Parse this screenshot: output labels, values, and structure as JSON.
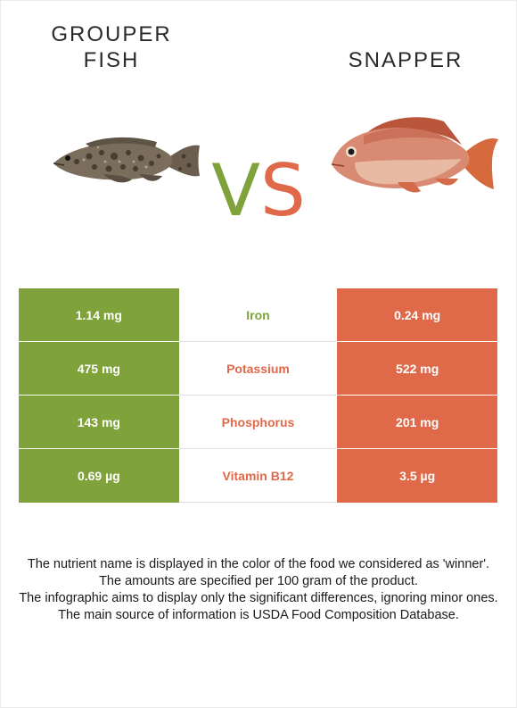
{
  "foods": {
    "left": {
      "name": "GROUPER FISH",
      "color": "#7fa23a"
    },
    "right": {
      "name": "SNAPPER",
      "color": "#e0694a"
    }
  },
  "vs": {
    "v": "V",
    "s": "S"
  },
  "rows": [
    {
      "nutrient": "Iron",
      "left": "1.14 mg",
      "right": "0.24 mg",
      "winner": "left"
    },
    {
      "nutrient": "Potassium",
      "left": "475 mg",
      "right": "522 mg",
      "winner": "right"
    },
    {
      "nutrient": "Phosphorus",
      "left": "143 mg",
      "right": "201 mg",
      "winner": "right"
    },
    {
      "nutrient": "Vitamin B12",
      "left": "0.69 µg",
      "right": "3.5 µg",
      "winner": "right"
    }
  ],
  "notes": [
    "The nutrient name is displayed in the color of the food we considered as 'winner'.",
    "The amounts are specified per 100 gram of the product.",
    "The infographic aims to display only the significant differences, ignoring minor ones.",
    "The main source of information is USDA Food Composition Database."
  ]
}
